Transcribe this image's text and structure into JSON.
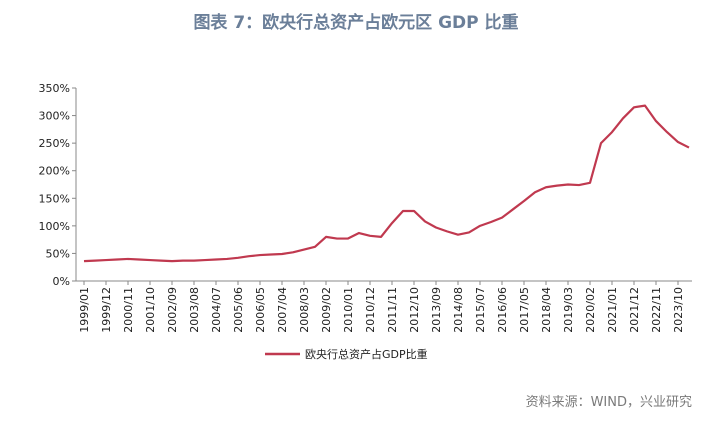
{
  "chart_data": {
    "type": "line",
    "title": "图表 7：欧央行总资产占欧元区 GDP 比重",
    "source": "资料来源：WIND，兴业研究",
    "categories": [
      "1999/01",
      null,
      "1999/12",
      null,
      "2000/11",
      null,
      "2001/10",
      null,
      "2002/09",
      null,
      "2003/08",
      null,
      "2004/07",
      null,
      "2005/06",
      null,
      "2006/05",
      null,
      "2007/04",
      null,
      "2008/03",
      null,
      "2009/02",
      null,
      "2010/01",
      null,
      "2010/12",
      null,
      "2011/11",
      null,
      "2012/10",
      null,
      "2013/09",
      null,
      "2014/08",
      null,
      "2015/07",
      null,
      "2016/06",
      null,
      "2017/05",
      null,
      "2018/04",
      null,
      "2019/03",
      null,
      "2020/02",
      null,
      "2021/01",
      null,
      "2021/12",
      null,
      "2022/11",
      null,
      "2023/10",
      null
    ],
    "series": [
      {
        "name": "欧央行总资产占GDP比重",
        "color": "#c0394f",
        "values": [
          36,
          37,
          38,
          39,
          40,
          39,
          38,
          37,
          36,
          37,
          37,
          38,
          39,
          40,
          42,
          45,
          47,
          48,
          49,
          52,
          57,
          62,
          80,
          77,
          77,
          87,
          82,
          80,
          105,
          127,
          127,
          108,
          97,
          90,
          84,
          88,
          100,
          107,
          115,
          130,
          145,
          161,
          170,
          173,
          175,
          174,
          178,
          250,
          270,
          295,
          315,
          318,
          290,
          270,
          252,
          242
        ]
      }
    ],
    "ylim": [
      0,
      350
    ],
    "yticks": [
      {
        "value": 0,
        "label": "0%"
      },
      {
        "value": 50,
        "label": "50%"
      },
      {
        "value": 100,
        "label": "100%"
      },
      {
        "value": 150,
        "label": "150%"
      },
      {
        "value": 200,
        "label": "200%"
      },
      {
        "value": 250,
        "label": "250%"
      },
      {
        "value": 300,
        "label": "300%"
      },
      {
        "value": 350,
        "label": "350%"
      }
    ]
  }
}
